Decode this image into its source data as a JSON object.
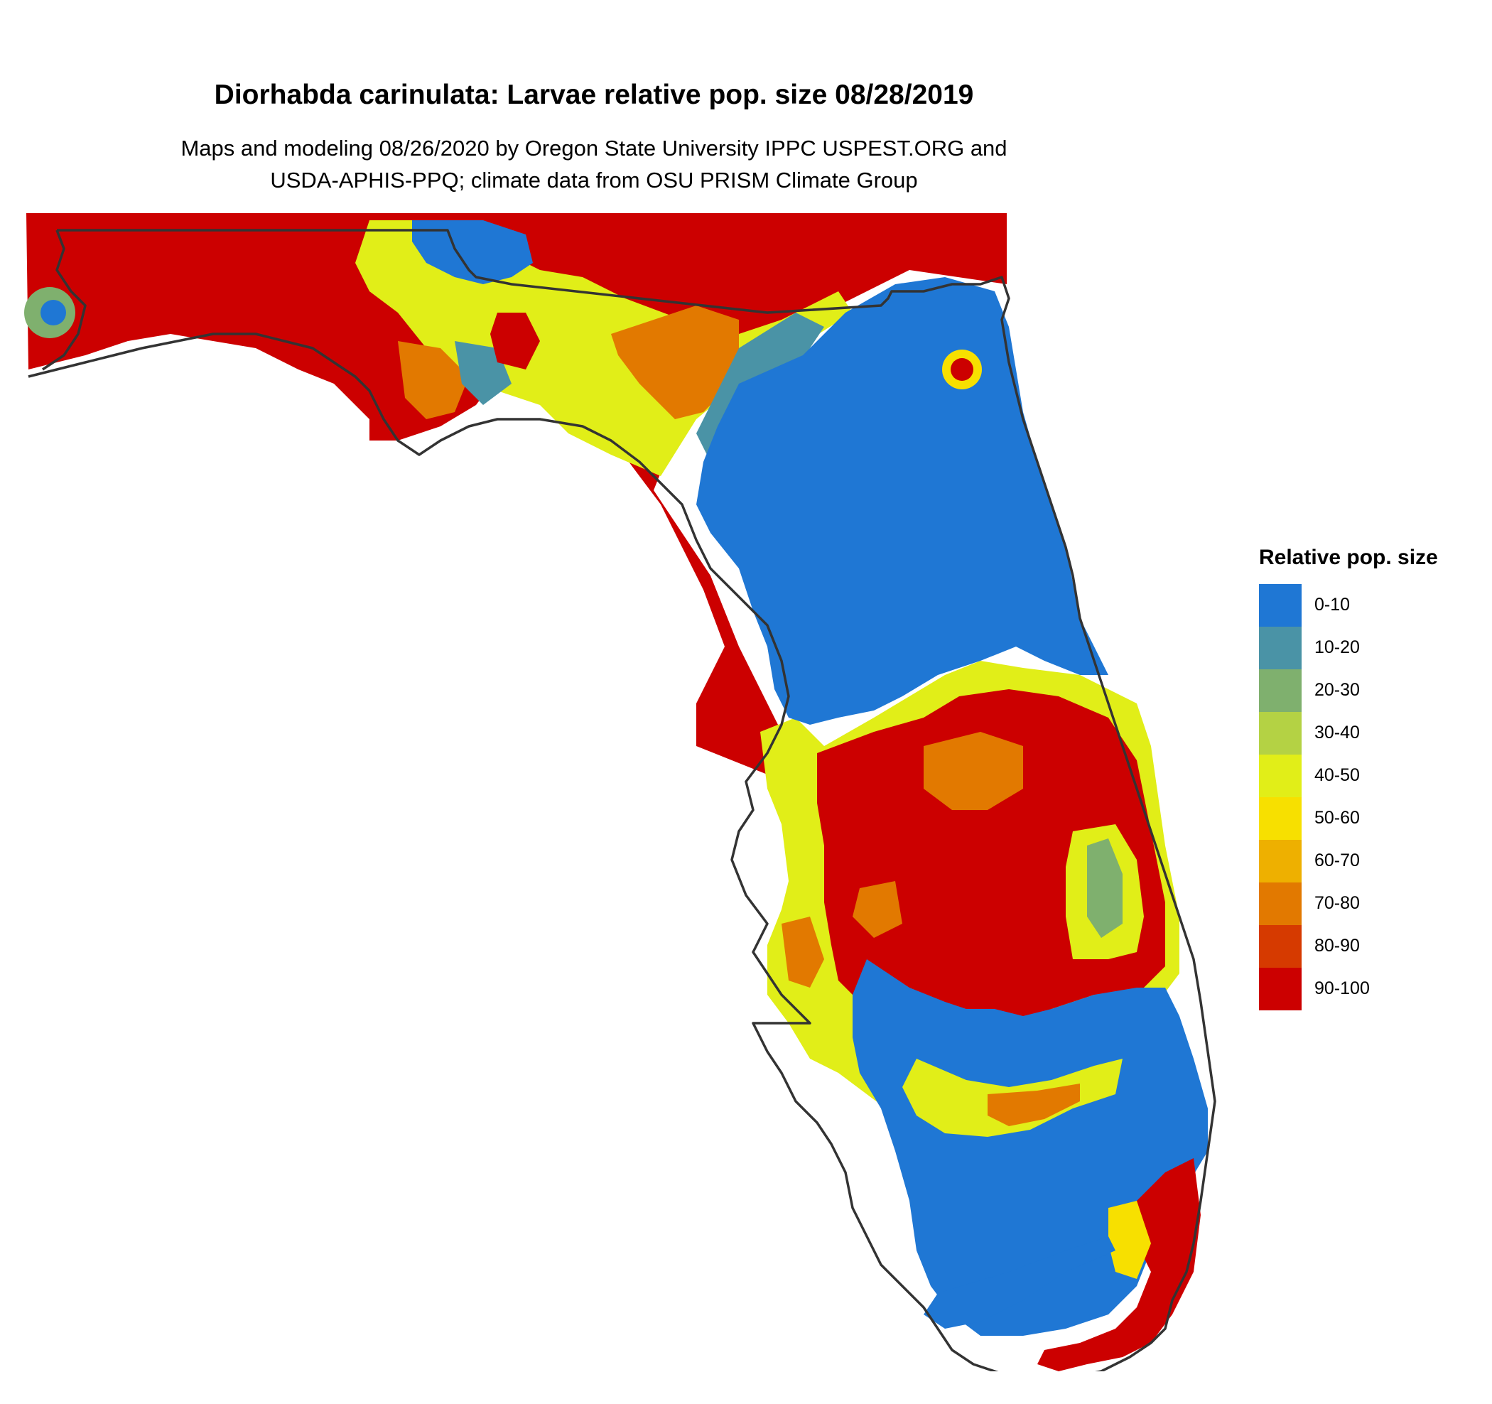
{
  "title": "Diorhabda carinulata: Larvae relative pop. size 08/28/2019",
  "subtitle_line1": "Maps and modeling 08/26/2020 by Oregon State University IPPC USPEST.ORG and",
  "subtitle_line2": "USDA-APHIS-PPQ; climate data from OSU PRISM Climate Group",
  "legend": {
    "title": "Relative pop. size",
    "items": [
      {
        "label": "0-10",
        "color": "#1f77d4"
      },
      {
        "label": "10-20",
        "color": "#4a93a6"
      },
      {
        "label": "20-30",
        "color": "#7fb06e"
      },
      {
        "label": "30-40",
        "color": "#b4d244"
      },
      {
        "label": "40-50",
        "color": "#e1ee18"
      },
      {
        "label": "50-60",
        "color": "#f7e000"
      },
      {
        "label": "60-70",
        "color": "#eeb000"
      },
      {
        "label": "70-80",
        "color": "#e27900"
      },
      {
        "label": "80-90",
        "color": "#d63a00"
      },
      {
        "label": "90-100",
        "color": "#cc0000"
      }
    ]
  },
  "map": {
    "region": "Florida",
    "outline_color": "#333333"
  }
}
